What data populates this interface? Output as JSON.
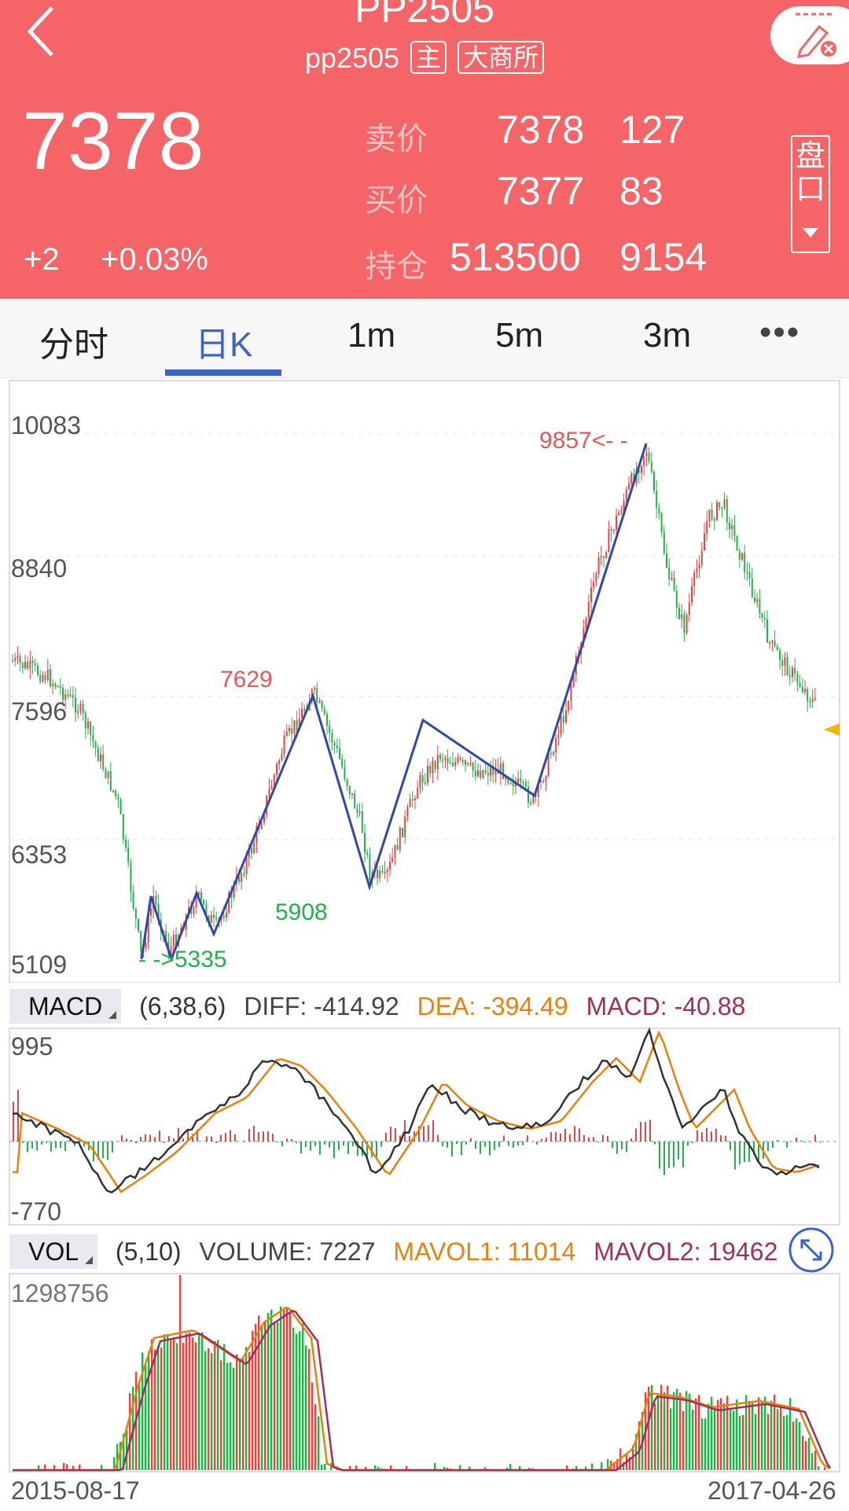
{
  "header": {
    "title": "PP2505",
    "code": "pp2505",
    "tag_main": "主",
    "tag_exchange": "大商所",
    "price": "7378",
    "change": "+2",
    "change_pct": "+0.03%",
    "quote": {
      "sell_label": "卖价",
      "sell_price": "7378",
      "sell_vol": "127",
      "buy_label": "买价",
      "buy_price": "7377",
      "buy_vol": "83",
      "oi_label": "持仓",
      "oi_value": "513500",
      "oi_change": "9154"
    },
    "pankou_label": "盘口"
  },
  "tabs": [
    "分时",
    "日K",
    "1m",
    "5m",
    "3m"
  ],
  "active_tab": "日K",
  "kline": {
    "y_labels": [
      "10083",
      "8840",
      "7596",
      "6353",
      "5109"
    ],
    "annotations": {
      "high": "9857<- -",
      "peak1": "7629",
      "low": "- ->5335",
      "low2": "5908"
    }
  },
  "macd": {
    "tag": "MACD",
    "params": "(6,38,6)",
    "diff": "DIFF: -414.92",
    "dea": "DEA: -394.49",
    "macd": "MACD: -40.88",
    "y_labels": [
      "995",
      "-770"
    ]
  },
  "vol": {
    "tag": "VOL",
    "params": "(5,10)",
    "volume": "VOLUME: 7227",
    "mavol1": "MAVOL1: 11014",
    "mavol2": "MAVOL2: 19462",
    "y_label": "1298756"
  },
  "dates": {
    "start": "2015-08-17",
    "end": "2017-04-26"
  },
  "colors": {
    "header": "#f56467",
    "up": "#e24545",
    "down": "#22b14c",
    "accent": "#3a64c8",
    "orange": "#e8820c",
    "maroon": "#a0305a"
  }
}
